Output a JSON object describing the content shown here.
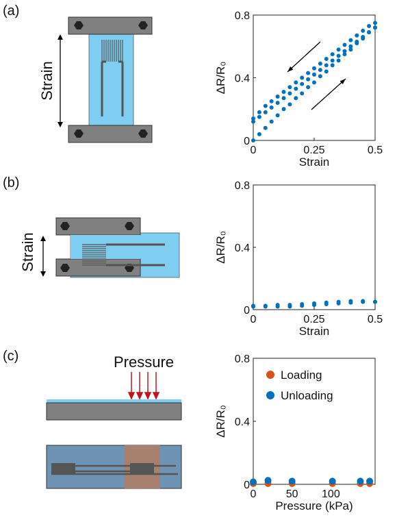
{
  "panels": [
    {
      "label": "(a)",
      "diagram_label": "Strain"
    },
    {
      "label": "(b)",
      "diagram_label": "Strain"
    },
    {
      "label": "(c)",
      "diagram_label": "Pressure"
    }
  ],
  "chart_data": [
    {
      "type": "scatter",
      "xlabel": "Strain",
      "ylabel": "ΔR/R₀",
      "color": "#0072bd",
      "xlim": [
        0,
        0.5
      ],
      "xticks": [
        0,
        0.25,
        0.5
      ],
      "ylim": [
        0,
        0.8
      ],
      "yticks": [
        0,
        0.4,
        0.8
      ],
      "x": [
        0,
        0.025,
        0.05,
        0.075,
        0.1,
        0.125,
        0.15,
        0.175,
        0.2,
        0.225,
        0.25,
        0.275,
        0.3,
        0.325,
        0.35,
        0.375,
        0.4,
        0.425,
        0.45,
        0.475,
        0.5,
        0.5,
        0.475,
        0.45,
        0.425,
        0.4,
        0.375,
        0.35,
        0.325,
        0.3,
        0.275,
        0.25,
        0.225,
        0.2,
        0.175,
        0.15,
        0.125,
        0.1,
        0.075,
        0.05,
        0.025,
        0,
        0,
        0.025,
        0.05,
        0.075,
        0.1,
        0.125,
        0.15,
        0.175,
        0.2,
        0.225,
        0.25,
        0.275,
        0.3,
        0.325,
        0.35,
        0.375,
        0.4,
        0.425,
        0.45,
        0.475,
        0.5
      ],
      "values": [
        0,
        0.04,
        0.08,
        0.12,
        0.16,
        0.2,
        0.23,
        0.27,
        0.3,
        0.34,
        0.37,
        0.41,
        0.44,
        0.48,
        0.51,
        0.55,
        0.58,
        0.62,
        0.65,
        0.69,
        0.72,
        0.75,
        0.73,
        0.7,
        0.67,
        0.64,
        0.61,
        0.58,
        0.55,
        0.52,
        0.49,
        0.46,
        0.43,
        0.4,
        0.37,
        0.34,
        0.31,
        0.28,
        0.25,
        0.22,
        0.18,
        0.14,
        0.12,
        0.15,
        0.18,
        0.21,
        0.24,
        0.27,
        0.3,
        0.33,
        0.36,
        0.39,
        0.42,
        0.45,
        0.48,
        0.51,
        0.54,
        0.57,
        0.6,
        0.63,
        0.66,
        0.69,
        0.72
      ]
    },
    {
      "type": "scatter",
      "xlabel": "Strain",
      "ylabel": "ΔR/R₀",
      "color": "#0072bd",
      "xlim": [
        0,
        0.5
      ],
      "xticks": [
        0,
        0.25,
        0.5
      ],
      "ylim": [
        0,
        0.8
      ],
      "yticks": [
        0,
        0.4,
        0.8
      ],
      "x": [
        0,
        0.05,
        0.1,
        0.15,
        0.2,
        0.25,
        0.3,
        0.35,
        0.4,
        0.45,
        0.5,
        0.5,
        0.45,
        0.4,
        0.35,
        0.3,
        0.25,
        0.2,
        0.15,
        0.1,
        0.05,
        0
      ],
      "values": [
        0.02,
        0.02,
        0.02,
        0.02,
        0.025,
        0.03,
        0.035,
        0.04,
        0.045,
        0.05,
        0.05,
        0.05,
        0.055,
        0.055,
        0.05,
        0.045,
        0.04,
        0.035,
        0.03,
        0.03,
        0.025,
        0.025
      ]
    },
    {
      "type": "scatter",
      "xlabel": "Pressure (kPa)",
      "ylabel": "ΔR/R₀",
      "xlim": [
        0,
        157
      ],
      "xticks": [
        0,
        50,
        100
      ],
      "ylim": [
        0,
        0.8
      ],
      "yticks": [
        0,
        0.4,
        0.8
      ],
      "x": [
        0,
        19,
        50,
        102,
        138,
        150
      ],
      "series": [
        {
          "name": "Loading",
          "color": "#d95319",
          "values": [
            0.005,
            0.005,
            0.005,
            0.005,
            0.005,
            0.005
          ]
        },
        {
          "name": "Unloading",
          "color": "#0072bd",
          "values": [
            0.015,
            0.025,
            0.02,
            0.02,
            0.02,
            0.02
          ]
        }
      ]
    }
  ]
}
